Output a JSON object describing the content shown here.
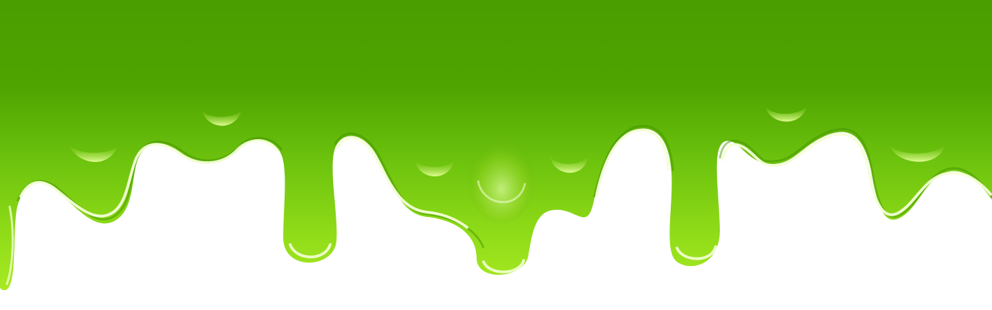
{
  "illustration": {
    "subject": "slime-drip-border",
    "colors": {
      "background": "#ffffff",
      "slime_top": "#4ea400",
      "slime_mid": "#63b80a",
      "slime_bottom": "#9be21a",
      "highlight": "#f4ffd8",
      "edge_shadow": "#3f8f00"
    }
  }
}
